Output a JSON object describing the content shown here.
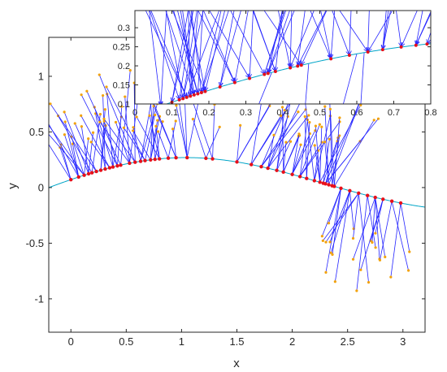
{
  "chart_data": [
    {
      "id": "main",
      "type": "line",
      "title": "",
      "xlabel": "x",
      "ylabel": "y",
      "xlim": [
        -0.2,
        3.2
      ],
      "ylim": [
        -1.3,
        1.35
      ],
      "xticks": [
        "0",
        "0.5",
        "1",
        "1.5",
        "2",
        "2.5",
        "3"
      ],
      "xtick_values": [
        0,
        0.5,
        1,
        1.5,
        2,
        2.5,
        3
      ],
      "yticks": [
        "-1",
        "-0.5",
        "0",
        "0.5",
        "1"
      ],
      "ytick_values": [
        -1,
        -0.5,
        0,
        0.5,
        1
      ],
      "grid": false,
      "curve": {
        "function": "0.3*sin(1.2*(x+0.2))*exp(-0.1*x)",
        "color": "#00a5c8"
      },
      "sample_points": {
        "x": [
          0.0,
          0.07,
          0.12,
          0.16,
          0.19,
          0.23,
          0.27,
          0.31,
          0.35,
          0.38,
          0.42,
          0.45,
          0.53,
          0.58,
          0.63,
          0.67,
          0.72,
          0.76,
          0.8,
          0.88,
          0.95,
          1.05,
          1.22,
          1.28,
          1.5,
          1.63,
          1.72,
          1.78,
          1.86,
          1.92,
          2.0,
          2.07,
          2.13,
          2.2,
          2.25,
          2.28,
          2.3,
          2.33,
          2.36,
          2.38,
          2.44,
          2.52,
          2.6,
          2.68,
          2.75,
          2.82,
          2.9,
          2.98
        ],
        "color": "#e8101a"
      },
      "vectors": {
        "color": "#2424ff",
        "tip_color": "#f2a20a"
      }
    },
    {
      "id": "inset",
      "type": "line",
      "title": "",
      "xlabel": "",
      "ylabel": "",
      "xlim": [
        0,
        0.8
      ],
      "ylim": [
        0.1,
        0.345
      ],
      "xticks": [
        "0",
        "0.1",
        "0.2",
        "0.3",
        "0.4",
        "0.5",
        "0.6",
        "0.7",
        "0.8"
      ],
      "xtick_values": [
        0,
        0.1,
        0.2,
        0.3,
        0.4,
        0.5,
        0.6,
        0.7,
        0.8
      ],
      "yticks": [
        "0.1",
        "0.15",
        "0.2",
        "0.25",
        "0.3"
      ],
      "ytick_values": [
        0.1,
        0.15,
        0.2,
        0.25,
        0.3
      ],
      "grid": false,
      "curve": {
        "color": "#00a5c8"
      },
      "sample_points": {
        "x": [
          0.07,
          0.1,
          0.12,
          0.13,
          0.14,
          0.15,
          0.16,
          0.17,
          0.18,
          0.19,
          0.23,
          0.27,
          0.31,
          0.35,
          0.36,
          0.38,
          0.42,
          0.44,
          0.45,
          0.53,
          0.58,
          0.63,
          0.67,
          0.72,
          0.76,
          0.79
        ],
        "color": "#e8101a"
      },
      "vectors": {
        "color": "#2424ff"
      }
    }
  ]
}
